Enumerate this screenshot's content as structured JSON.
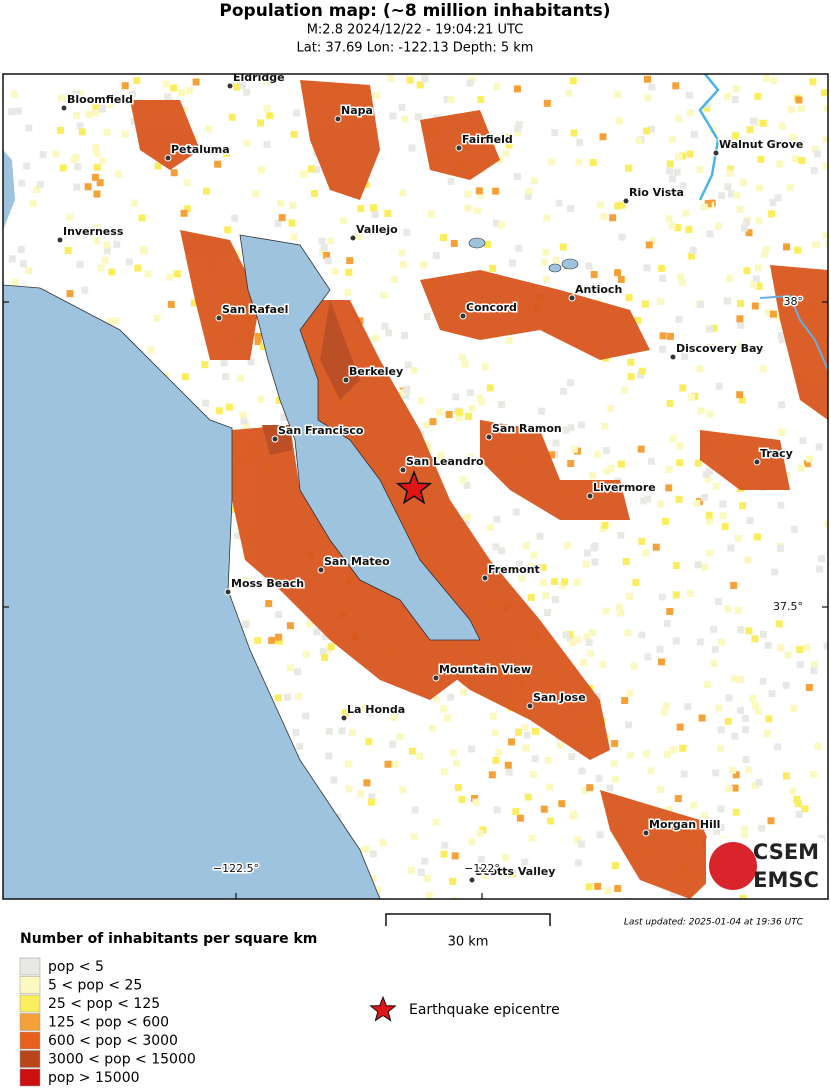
{
  "header": {
    "title": "Population map: (~8 million inhabitants)",
    "line1": "M:2.8 2024/12/22 - 19:04:21 UTC",
    "line2": "Lat: 37.69 Lon: -122.13 Depth: 5 km"
  },
  "map": {
    "cities": [
      {
        "name": "Eldridge"
      },
      {
        "name": "Bloomfield"
      },
      {
        "name": "Napa"
      },
      {
        "name": "Petaluma"
      },
      {
        "name": "Fairfield"
      },
      {
        "name": "Walnut Grove"
      },
      {
        "name": "Rio Vista"
      },
      {
        "name": "Inverness"
      },
      {
        "name": "Vallejo"
      },
      {
        "name": "Antioch"
      },
      {
        "name": "Concord"
      },
      {
        "name": "San Rafael"
      },
      {
        "name": "Discovery Bay"
      },
      {
        "name": "Berkeley"
      },
      {
        "name": "San Ramon"
      },
      {
        "name": "San Francisco"
      },
      {
        "name": "Tracy"
      },
      {
        "name": "San Leandro"
      },
      {
        "name": "Livermore"
      },
      {
        "name": "San Mateo"
      },
      {
        "name": "Fremont"
      },
      {
        "name": "Moss Beach"
      },
      {
        "name": "Mountain View"
      },
      {
        "name": "San Jose"
      },
      {
        "name": "La Honda"
      },
      {
        "name": "Morgan Hill"
      },
      {
        "name": "Scotts Valley"
      }
    ],
    "lat_labels": [
      "38°",
      "37.5°"
    ],
    "lon_labels": [
      "−122.5°",
      "−122°"
    ],
    "logo": [
      "CSEM",
      "EMSC"
    ]
  },
  "scale": {
    "label": "30 km"
  },
  "last_updated": "Last updated: 2025-01-04 at 19:36 UTC",
  "legend": {
    "title": "Number of inhabitants per square km",
    "items": [
      {
        "label": "pop < 5",
        "color": "#e8e8e4"
      },
      {
        "label": "5 < pop < 25",
        "color": "#fbf8c0"
      },
      {
        "label": "25 < pop < 125",
        "color": "#faed5e"
      },
      {
        "label": "125 < pop < 600",
        "color": "#f5a13a"
      },
      {
        "label": "600 < pop < 3000",
        "color": "#e8601c"
      },
      {
        "label": "3000 < pop < 15000",
        "color": "#b8461a"
      },
      {
        "label": "pop > 15000",
        "color": "#cc1010"
      }
    ],
    "epicentre": "Earthquake epicentre"
  }
}
